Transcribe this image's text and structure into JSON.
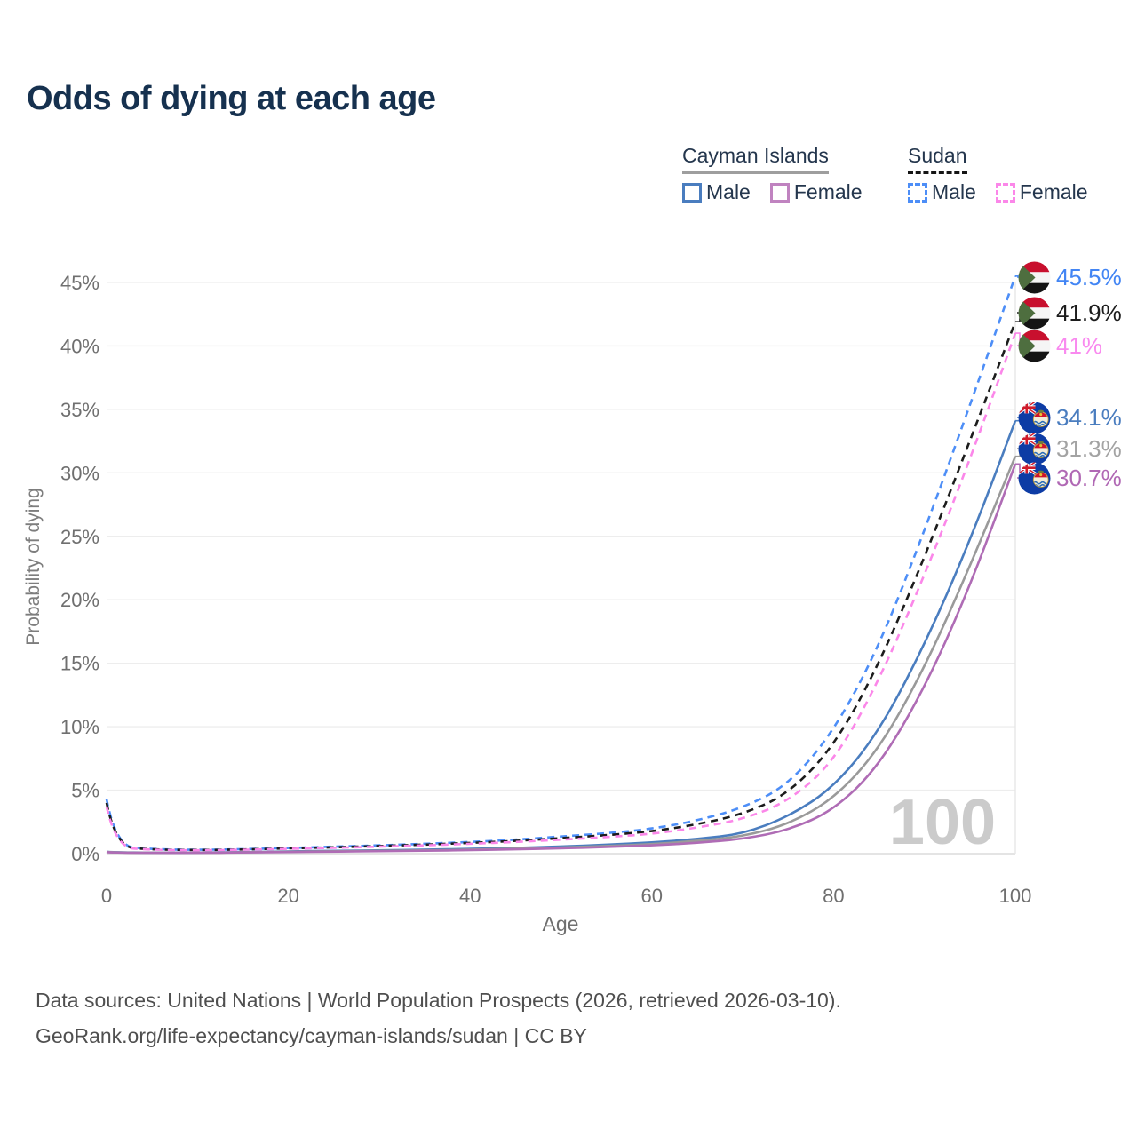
{
  "title": "Odds of dying at each age",
  "legend": {
    "groups": [
      {
        "label": "Cayman Islands",
        "line_style": "solid",
        "underline_color": "#9e9e9e",
        "items": [
          {
            "label": "Male",
            "color": "#4a7dbf",
            "dash": false
          },
          {
            "label": "Female",
            "color": "#c083c0",
            "dash": false
          }
        ]
      },
      {
        "label": "Sudan",
        "line_style": "dashed",
        "underline_color": "#151515",
        "items": [
          {
            "label": "Male",
            "color": "#4d8ef7",
            "dash": true
          },
          {
            "label": "Female",
            "color": "#fb87e9",
            "dash": true
          }
        ]
      }
    ]
  },
  "chart_data": {
    "type": "line",
    "title": "Odds of dying at each age",
    "xlabel": "Age",
    "ylabel": "Probability of dying",
    "watermark": "100",
    "x_ticks": [
      0,
      20,
      40,
      60,
      80,
      100
    ],
    "y_ticks": [
      "0%",
      "5%",
      "10%",
      "15%",
      "20%",
      "25%",
      "30%",
      "35%",
      "40%",
      "45%"
    ],
    "xlim": [
      0,
      100
    ],
    "ylim_pct": [
      0,
      46
    ],
    "grid": "horizontal-only",
    "x": [
      0,
      1,
      5,
      10,
      15,
      20,
      25,
      30,
      35,
      40,
      45,
      50,
      55,
      60,
      65,
      70,
      75,
      80,
      85,
      90,
      95,
      100
    ],
    "series": [
      {
        "name": "Sudan Male",
        "flag_icon": "sudan-flag-icon",
        "color": "#4d8ef7",
        "dash": true,
        "end_label": "45.5%",
        "label_color": "#4285f4",
        "values": [
          4.3,
          0.6,
          0.35,
          0.3,
          0.35,
          0.45,
          0.55,
          0.65,
          0.78,
          0.92,
          1.1,
          1.35,
          1.6,
          1.95,
          2.6,
          3.6,
          5.4,
          9.6,
          16.3,
          25.4,
          35.3,
          45.5
        ]
      },
      {
        "name": "Sudan Both sexes",
        "flag_icon": "sudan-flag-icon",
        "color": "#1c1c1c",
        "dash": true,
        "end_label": "41.9%",
        "label_color": "#1c1c1c",
        "values": [
          4.0,
          0.55,
          0.32,
          0.28,
          0.32,
          0.42,
          0.5,
          0.6,
          0.71,
          0.85,
          1.0,
          1.22,
          1.45,
          1.75,
          2.3,
          3.1,
          4.7,
          8.4,
          14.9,
          23.3,
          32.5,
          41.9
        ]
      },
      {
        "name": "Sudan Female",
        "flag_icon": "sudan-flag-icon",
        "color": "#fb87e9",
        "dash": true,
        "end_label": "41%",
        "label_color": "#f98aef",
        "values": [
          3.7,
          0.5,
          0.3,
          0.26,
          0.3,
          0.38,
          0.46,
          0.55,
          0.65,
          0.78,
          0.92,
          1.1,
          1.3,
          1.55,
          2.05,
          2.7,
          4.1,
          7.2,
          13.6,
          21.9,
          31.0,
          41.0
        ]
      },
      {
        "name": "Cayman Islands Male",
        "flag_icon": "cayman-islands-flag-icon",
        "color": "#4a7dbf",
        "dash": false,
        "end_label": "34.1%",
        "label_color": "#4a7dbf",
        "values": [
          0.15,
          0.1,
          0.08,
          0.08,
          0.12,
          0.18,
          0.22,
          0.26,
          0.31,
          0.37,
          0.45,
          0.56,
          0.7,
          0.88,
          1.15,
          1.55,
          2.9,
          5.2,
          9.6,
          16.4,
          24.6,
          34.1
        ]
      },
      {
        "name": "Cayman Islands Both sexes",
        "flag_icon": "cayman-islands-flag-icon",
        "color": "#9a9a9a",
        "dash": false,
        "end_label": "31.3%",
        "label_color": "#a3a3a3",
        "values": [
          0.13,
          0.09,
          0.07,
          0.07,
          0.1,
          0.15,
          0.19,
          0.22,
          0.26,
          0.32,
          0.39,
          0.48,
          0.6,
          0.75,
          1.0,
          1.35,
          2.3,
          4.3,
          8.2,
          14.6,
          22.6,
          31.3
        ]
      },
      {
        "name": "Cayman Islands Female",
        "flag_icon": "cayman-islands-flag-icon",
        "color": "#af6cb5",
        "dash": false,
        "end_label": "30.7%",
        "label_color": "#b068b4",
        "values": [
          0.12,
          0.08,
          0.06,
          0.06,
          0.09,
          0.13,
          0.16,
          0.19,
          0.23,
          0.28,
          0.34,
          0.42,
          0.52,
          0.65,
          0.85,
          1.15,
          1.85,
          3.4,
          6.9,
          13.0,
          21.0,
          30.7
        ]
      }
    ]
  },
  "footer": {
    "line1": "Data sources: United Nations | World Population Prospects (2026, retrieved 2026-03-10).",
    "line2": "GeoRank.org/life-expectancy/cayman-islands/sudan | CC BY"
  }
}
